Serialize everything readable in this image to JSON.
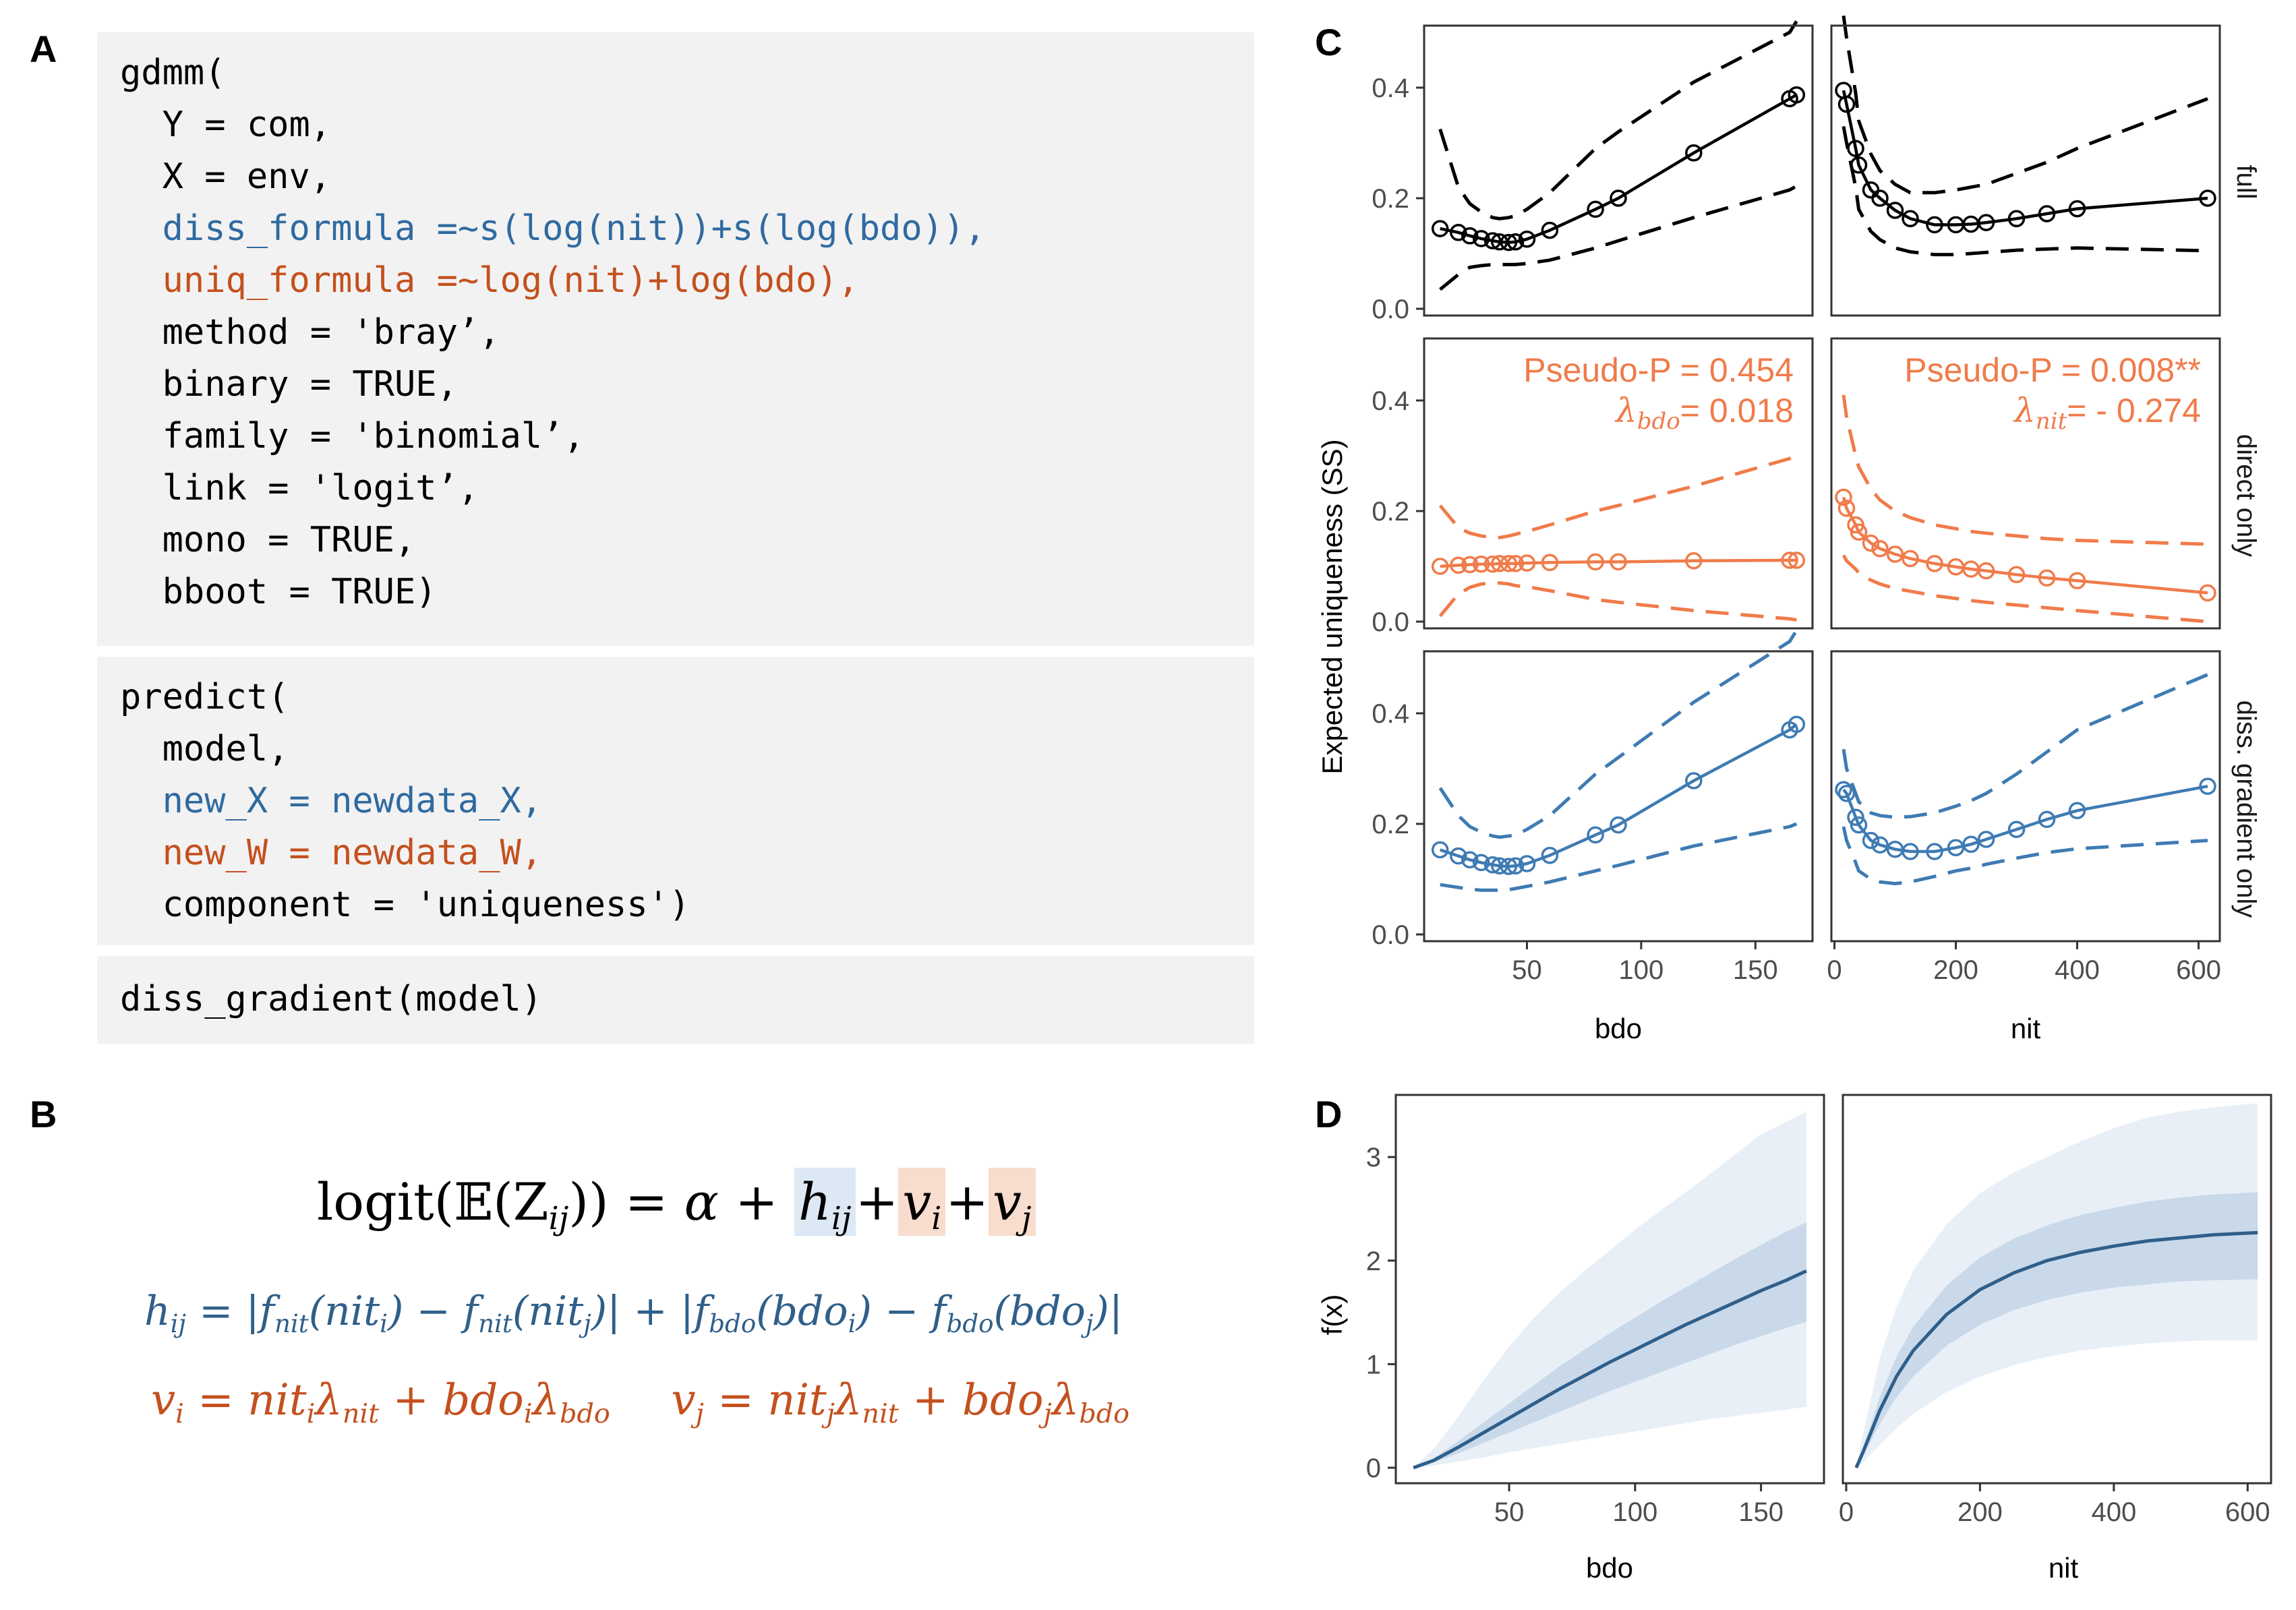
{
  "panels": {
    "A": "A",
    "B": "B",
    "C": "C",
    "D": "D"
  },
  "code": {
    "block1": [
      {
        "text": "gdmm(",
        "color": "black"
      },
      {
        "text": "  Y = com,",
        "color": "black"
      },
      {
        "text": "  X = env,",
        "color": "black"
      },
      {
        "text": "  diss_formula =~s(log(nit))+s(log(bdo)),",
        "color": "blue"
      },
      {
        "text": "  uniq_formula =~log(nit)+log(bdo),",
        "color": "orange"
      },
      {
        "text": "  method = 'bray’,",
        "color": "black"
      },
      {
        "text": "  binary = TRUE,",
        "color": "black"
      },
      {
        "text": "  family = 'binomial’,",
        "color": "black"
      },
      {
        "text": "  link = 'logit’,",
        "color": "black"
      },
      {
        "text": "  mono = TRUE,",
        "color": "black"
      },
      {
        "text": "  bboot = TRUE)",
        "color": "black"
      }
    ],
    "block2": [
      {
        "text": "predict(",
        "color": "black"
      },
      {
        "text": "  model,",
        "color": "black"
      },
      {
        "text": "  new_X = newdata_X,",
        "color": "blue"
      },
      {
        "text": "  new_W = newdata_W,",
        "color": "orange"
      },
      {
        "text": "  component = 'uniqueness')",
        "color": "black"
      }
    ],
    "block3": [
      {
        "text": "diss_gradient(model)",
        "color": "black"
      }
    ]
  },
  "equations": {
    "eq1": {
      "lhs_func": "logit",
      "lhs_open": "(",
      "lhs_E": "𝔼",
      "lhs_inner": "(Z",
      "lhs_sub": "ij",
      "lhs_close": "))",
      "rhs": "= α +",
      "h": "h",
      "h_sub": "ij",
      "plus1": "+",
      "v": "v",
      "vi_sub": "i",
      "plus2": "+",
      "vj_sub": "j"
    },
    "eq2": {
      "h": "h",
      "h_sub": "ij",
      "eq": "= |f",
      "nit_sub": "nit",
      "p1": "(nit",
      "i": "i",
      "p2": ") − f",
      "p3": "(nit",
      "j": "j",
      "p4": ")| + |f",
      "bdo_sub": "bdo",
      "p5": "(bdo",
      "p6": ") − f",
      "p7": "(bdo",
      "p8": ")|"
    },
    "eq3": {
      "vi": "v",
      "i": "i",
      "eq": "= nit",
      "lam": "λ",
      "nit": "nit",
      "plus": "+ bdo",
      "bdo": "bdo",
      "vj": "v",
      "j": "j"
    },
    "colors": {
      "blue": "#2f5f8a",
      "orange": "#c4501e"
    }
  },
  "figure_c": {
    "ylabel": "Expected uniqueness (SS)",
    "xlabels": [
      "bdo",
      "nit"
    ],
    "strips": [
      "full",
      "direct only",
      "diss. gradient only"
    ],
    "y_ticks": [
      "0.0",
      "0.2",
      "0.4"
    ],
    "x_ticks_bdo": [
      "50",
      "100",
      "150"
    ],
    "x_ticks_nit": [
      "0",
      "200",
      "400",
      "600"
    ],
    "annotations": {
      "bdo": {
        "p": "Pseudo-P = 0.454",
        "lam_sym": "λ",
        "lam_sub": "bdo",
        "lam_val": "= 0.018"
      },
      "nit": {
        "p": "Pseudo-P = 0.008**",
        "lam_sym": "λ",
        "lam_sub": "nit",
        "lam_val": "= - 0.274"
      }
    },
    "colors": {
      "full": "#000000",
      "direct": "#f07b4a",
      "gradient": "#3f7bb3"
    }
  },
  "figure_d": {
    "ylabel": "f(x)",
    "xlabels": [
      "bdo",
      "nit"
    ],
    "y_ticks": [
      "0",
      "1",
      "2",
      "3"
    ],
    "x_ticks_bdo": [
      "50",
      "100",
      "150"
    ],
    "x_ticks_nit": [
      "0",
      "200",
      "400",
      "600"
    ],
    "colors": {
      "line": "#2f5f8a",
      "inner": "#c9d9ea",
      "outer": "#e8eff7"
    }
  },
  "chart_data": [
    {
      "type": "line",
      "panel": "C-full-bdo",
      "x": [
        12,
        20,
        25,
        30,
        35,
        38,
        42,
        45,
        50,
        60,
        80,
        90,
        123,
        165,
        168
      ],
      "series": [
        {
          "name": "full",
          "values": [
            0.145,
            0.138,
            0.132,
            0.127,
            0.123,
            0.121,
            0.12,
            0.121,
            0.126,
            0.142,
            0.18,
            0.2,
            0.282,
            0.38,
            0.387
          ]
        }
      ],
      "lower": [
        0.035,
        0.062,
        0.075,
        0.078,
        0.08,
        0.08,
        0.08,
        0.08,
        0.082,
        0.088,
        0.11,
        0.123,
        0.165,
        0.215,
        0.222
      ],
      "upper": [
        0.325,
        0.22,
        0.19,
        0.175,
        0.165,
        0.163,
        0.165,
        0.168,
        0.18,
        0.21,
        0.29,
        0.32,
        0.41,
        0.5,
        0.52
      ],
      "ylim": [
        0,
        0.5
      ],
      "xlim": [
        5,
        175
      ]
    },
    {
      "type": "line",
      "panel": "C-full-nit",
      "x": [
        15,
        20,
        35,
        40,
        60,
        75,
        100,
        125,
        165,
        200,
        225,
        250,
        300,
        350,
        400,
        615
      ],
      "series": [
        {
          "name": "full",
          "values": [
            0.395,
            0.37,
            0.29,
            0.26,
            0.215,
            0.2,
            0.178,
            0.163,
            0.152,
            0.152,
            0.153,
            0.156,
            0.163,
            0.172,
            0.181,
            0.2
          ]
        }
      ],
      "lower": [
        0.33,
        0.3,
        0.22,
        0.18,
        0.14,
        0.125,
        0.11,
        0.103,
        0.098,
        0.098,
        0.1,
        0.102,
        0.106,
        0.108,
        0.11,
        0.105
      ],
      "upper": [
        0.53,
        0.49,
        0.39,
        0.34,
        0.28,
        0.25,
        0.225,
        0.21,
        0.21,
        0.215,
        0.22,
        0.225,
        0.245,
        0.265,
        0.29,
        0.38
      ],
      "ylim": [
        0,
        0.5
      ],
      "xlim": [
        -5,
        635
      ]
    },
    {
      "type": "line",
      "panel": "C-direct-bdo",
      "x": [
        12,
        20,
        25,
        30,
        35,
        38,
        42,
        45,
        50,
        60,
        80,
        90,
        123,
        165,
        168
      ],
      "series": [
        {
          "name": "direct only",
          "values": [
            0.1,
            0.102,
            0.103,
            0.104,
            0.104,
            0.105,
            0.105,
            0.105,
            0.106,
            0.107,
            0.108,
            0.108,
            0.11,
            0.111,
            0.111
          ]
        }
      ],
      "lower": [
        0.01,
        0.05,
        0.062,
        0.068,
        0.07,
        0.07,
        0.068,
        0.065,
        0.063,
        0.056,
        0.04,
        0.035,
        0.02,
        0.005,
        0.003
      ],
      "upper": [
        0.21,
        0.17,
        0.16,
        0.155,
        0.152,
        0.152,
        0.155,
        0.158,
        0.163,
        0.175,
        0.2,
        0.21,
        0.245,
        0.295,
        0.3
      ],
      "ylim": [
        0,
        0.5
      ],
      "xlim": [
        5,
        175
      ]
    },
    {
      "type": "line",
      "panel": "C-direct-nit",
      "x": [
        15,
        20,
        35,
        40,
        60,
        75,
        100,
        125,
        165,
        200,
        225,
        250,
        300,
        350,
        400,
        615
      ],
      "series": [
        {
          "name": "direct only",
          "values": [
            0.225,
            0.205,
            0.175,
            0.162,
            0.142,
            0.132,
            0.122,
            0.114,
            0.105,
            0.099,
            0.095,
            0.092,
            0.085,
            0.079,
            0.074,
            0.052
          ]
        }
      ],
      "lower": [
        0.12,
        0.11,
        0.095,
        0.088,
        0.075,
        0.068,
        0.06,
        0.055,
        0.047,
        0.042,
        0.038,
        0.035,
        0.03,
        0.025,
        0.02,
        0.0
      ],
      "upper": [
        0.41,
        0.37,
        0.3,
        0.28,
        0.24,
        0.22,
        0.2,
        0.188,
        0.175,
        0.168,
        0.163,
        0.16,
        0.155,
        0.15,
        0.147,
        0.14
      ],
      "ylim": [
        0,
        0.5
      ],
      "xlim": [
        -5,
        635
      ]
    },
    {
      "type": "line",
      "panel": "C-gradient-bdo",
      "x": [
        12,
        20,
        25,
        30,
        35,
        38,
        42,
        45,
        50,
        60,
        80,
        90,
        123,
        165,
        168
      ],
      "series": [
        {
          "name": "diss. gradient only",
          "values": [
            0.153,
            0.142,
            0.135,
            0.13,
            0.126,
            0.124,
            0.123,
            0.124,
            0.128,
            0.143,
            0.18,
            0.198,
            0.278,
            0.37,
            0.38
          ]
        }
      ],
      "lower": [
        0.09,
        0.085,
        0.082,
        0.08,
        0.08,
        0.08,
        0.081,
        0.083,
        0.087,
        0.095,
        0.115,
        0.125,
        0.16,
        0.195,
        0.2
      ],
      "upper": [
        0.265,
        0.215,
        0.195,
        0.185,
        0.178,
        0.176,
        0.178,
        0.18,
        0.19,
        0.215,
        0.29,
        0.32,
        0.42,
        0.53,
        0.55
      ],
      "ylim": [
        0,
        0.5
      ],
      "xlim": [
        5,
        175
      ]
    },
    {
      "type": "line",
      "panel": "C-gradient-nit",
      "x": [
        15,
        20,
        35,
        40,
        60,
        75,
        100,
        125,
        165,
        200,
        225,
        250,
        300,
        350,
        400,
        615
      ],
      "series": [
        {
          "name": "diss. gradient only",
          "values": [
            0.262,
            0.255,
            0.212,
            0.198,
            0.17,
            0.162,
            0.154,
            0.15,
            0.15,
            0.157,
            0.163,
            0.172,
            0.19,
            0.208,
            0.224,
            0.268
          ]
        }
      ],
      "lower": [
        0.195,
        0.17,
        0.13,
        0.115,
        0.1,
        0.095,
        0.092,
        0.095,
        0.105,
        0.115,
        0.12,
        0.127,
        0.138,
        0.148,
        0.155,
        0.17
      ],
      "upper": [
        0.335,
        0.3,
        0.255,
        0.24,
        0.22,
        0.215,
        0.212,
        0.213,
        0.22,
        0.232,
        0.242,
        0.255,
        0.29,
        0.33,
        0.37,
        0.47
      ],
      "ylim": [
        0,
        0.5
      ],
      "xlim": [
        -5,
        635
      ]
    },
    {
      "type": "area",
      "panel": "D-bdo",
      "x": [
        12,
        20,
        30,
        40,
        50,
        60,
        70,
        80,
        90,
        100,
        110,
        120,
        130,
        140,
        150,
        160,
        168
      ],
      "series": [
        {
          "name": "f(x)",
          "values": [
            0.0,
            0.07,
            0.2,
            0.34,
            0.48,
            0.62,
            0.76,
            0.89,
            1.02,
            1.14,
            1.26,
            1.38,
            1.49,
            1.6,
            1.71,
            1.81,
            1.9
          ]
        }
      ],
      "inner_lower": [
        0.0,
        0.05,
        0.14,
        0.24,
        0.34,
        0.44,
        0.54,
        0.64,
        0.74,
        0.83,
        0.92,
        1.01,
        1.1,
        1.19,
        1.27,
        1.35,
        1.41
      ],
      "inner_upper": [
        0.0,
        0.09,
        0.26,
        0.44,
        0.62,
        0.8,
        0.98,
        1.14,
        1.3,
        1.45,
        1.6,
        1.74,
        1.88,
        2.02,
        2.15,
        2.28,
        2.37
      ],
      "outer_lower": [
        0.0,
        0.02,
        0.06,
        0.1,
        0.15,
        0.19,
        0.23,
        0.27,
        0.31,
        0.35,
        0.39,
        0.43,
        0.47,
        0.5,
        0.53,
        0.56,
        0.59
      ],
      "outer_upper": [
        0.0,
        0.18,
        0.5,
        0.85,
        1.17,
        1.45,
        1.69,
        1.9,
        2.1,
        2.3,
        2.48,
        2.66,
        2.84,
        3.03,
        3.22,
        3.34,
        3.44
      ],
      "ylim": [
        -0.15,
        3.6
      ],
      "xlim": [
        5,
        175
      ]
    },
    {
      "type": "area",
      "panel": "D-nit",
      "x": [
        15,
        25,
        50,
        75,
        100,
        150,
        200,
        250,
        300,
        350,
        400,
        450,
        500,
        550,
        615
      ],
      "series": [
        {
          "name": "f(x)",
          "values": [
            0.0,
            0.15,
            0.55,
            0.88,
            1.13,
            1.48,
            1.72,
            1.88,
            2.0,
            2.08,
            2.14,
            2.19,
            2.22,
            2.25,
            2.27
          ]
        }
      ],
      "inner_lower": [
        0.0,
        0.11,
        0.42,
        0.68,
        0.88,
        1.18,
        1.38,
        1.52,
        1.62,
        1.69,
        1.74,
        1.77,
        1.8,
        1.81,
        1.82
      ],
      "inner_upper": [
        0.0,
        0.19,
        0.68,
        1.07,
        1.36,
        1.76,
        2.03,
        2.21,
        2.34,
        2.44,
        2.51,
        2.57,
        2.61,
        2.64,
        2.66
      ],
      "outer_lower": [
        0.0,
        0.05,
        0.22,
        0.38,
        0.52,
        0.73,
        0.88,
        0.99,
        1.07,
        1.13,
        1.17,
        1.2,
        1.22,
        1.23,
        1.23
      ],
      "outer_upper": [
        0.0,
        0.32,
        1.05,
        1.55,
        1.9,
        2.35,
        2.65,
        2.85,
        3.0,
        3.15,
        3.28,
        3.38,
        3.44,
        3.48,
        3.52
      ],
      "ylim": [
        -0.15,
        3.6
      ],
      "xlim": [
        -5,
        635
      ]
    }
  ]
}
